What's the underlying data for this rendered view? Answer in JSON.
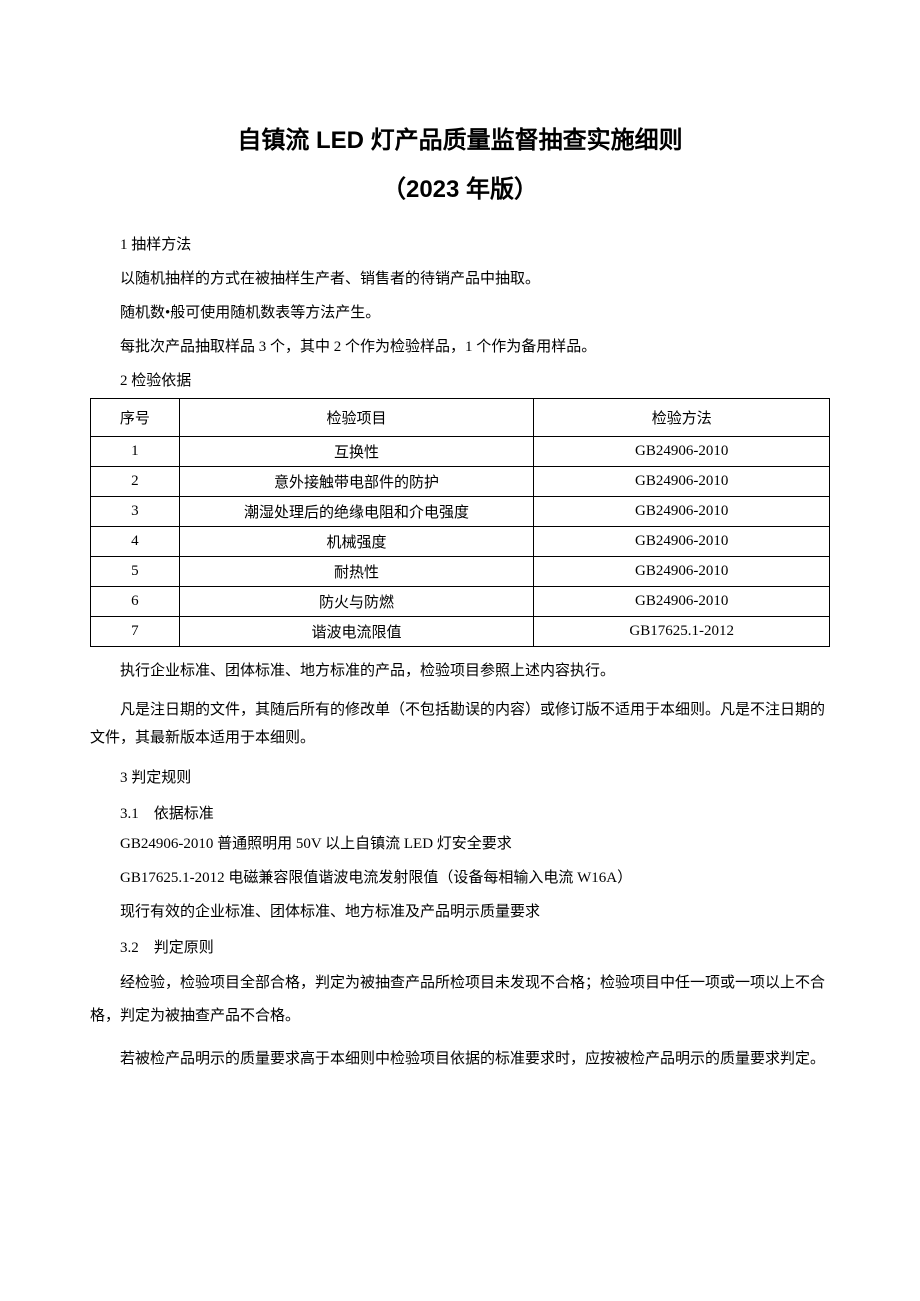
{
  "title": "自镇流 LED 灯产品质量监督抽查实施细则",
  "subtitle": "（2023 年版）",
  "s1_head": "1 抽样方法",
  "s1_p1": "以随机抽样的方式在被抽样生产者、销售者的待销产品中抽取。",
  "s1_p2": "随机数•般可使用随机数表等方法产生。",
  "s1_p3": "每批次产品抽取样品 3 个，其中 2 个作为检验样品，1 个作为备用样品。",
  "s2_head": "2 检验依据",
  "table": {
    "headers": {
      "seq": "序号",
      "item": "检验项目",
      "method": "检验方法"
    },
    "rows": [
      {
        "seq": "1",
        "item": "互换性",
        "method": "GB24906-2010"
      },
      {
        "seq": "2",
        "item": "意外接触带电部件的防护",
        "method": "GB24906-2010"
      },
      {
        "seq": "3",
        "item": "潮湿处理后的绝缘电阻和介电强度",
        "method": "GB24906-2010"
      },
      {
        "seq": "4",
        "item": "机械强度",
        "method": "GB24906-2010"
      },
      {
        "seq": "5",
        "item": "耐热性",
        "method": "GB24906-2010"
      },
      {
        "seq": "6",
        "item": "防火与防燃",
        "method": "GB24906-2010"
      },
      {
        "seq": "7",
        "item": "谐波电流限值",
        "method": "GB17625.1-2012"
      }
    ]
  },
  "s2_p1": "执行企业标准、团体标准、地方标准的产品，检验项目参照上述内容执行。",
  "s2_p2": "凡是注日期的文件，其随后所有的修改单（不包括勘误的内容）或修订版不适用于本细则。凡是不注日期的文件，其最新版本适用于本细则。",
  "s3_head": "3 判定规则",
  "s3_1_head": "3.1　依据标准",
  "s3_1_p1": "GB24906-2010 普通照明用 50V 以上自镇流 LED 灯安全要求",
  "s3_1_p2": "GB17625.1-2012 电磁兼容限值谐波电流发射限值（设备每相输入电流 W16A）",
  "s3_1_p3": "现行有效的企业标准、团体标准、地方标准及产品明示质量要求",
  "s3_2_head": "3.2　判定原则",
  "s3_2_p1": "经检验，检验项目全部合格，判定为被抽查产品所检项目未发现不合格；检验项目中任一项或一项以上不合格，判定为被抽查产品不合格。",
  "s3_2_p2": "若被检产品明示的质量要求高于本细则中检验项目依据的标准要求时，应按被检产品明示的质量要求判定。"
}
